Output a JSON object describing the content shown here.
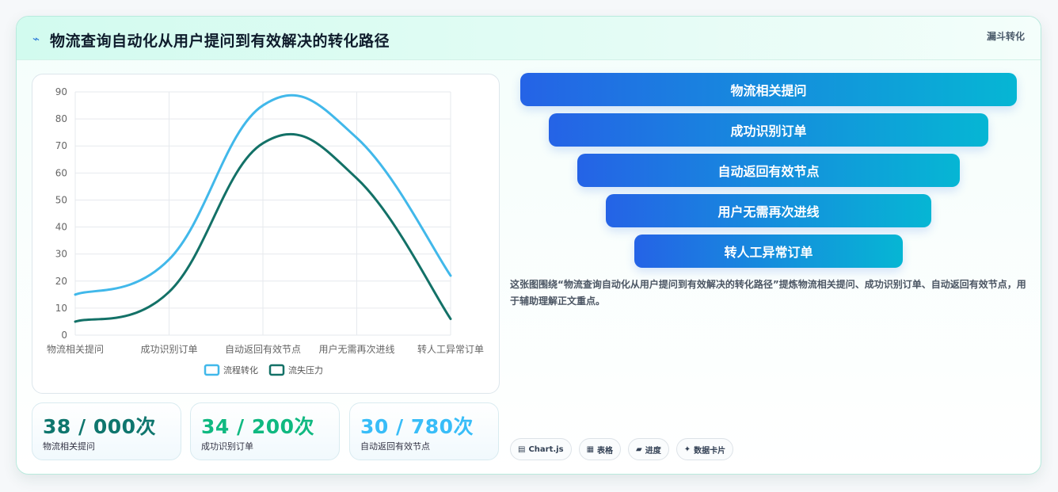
{
  "header": {
    "icon": "lightning-icon",
    "title": "物流查询自动化从用户提问到有效解决的转化路径",
    "tag": "漏斗转化"
  },
  "chart_data": {
    "type": "line",
    "categories": [
      "物流相关提问",
      "成功识别订单",
      "自动返回有效节点",
      "用户无需再次进线",
      "转人工异常订单"
    ],
    "series": [
      {
        "name": "流程转化",
        "values": [
          15,
          28,
          85,
          73,
          22
        ],
        "color": "#41b8ea"
      },
      {
        "name": "流失压力",
        "values": [
          5,
          16,
          71,
          58,
          6
        ],
        "color": "#137167"
      }
    ],
    "ylim": [
      0,
      90
    ],
    "yticks": [
      0,
      10,
      20,
      30,
      40,
      50,
      60,
      70,
      80,
      90
    ],
    "grid": true,
    "legend_position": "bottom"
  },
  "stats": [
    {
      "value": "38 / 000次",
      "label": "物流相关提问",
      "color": "#0f766e"
    },
    {
      "value": "34 / 200次",
      "label": "成功识别订单",
      "color": "#10b981"
    },
    {
      "value": "30 / 780次",
      "label": "自动返回有效节点",
      "color": "#38bdf8"
    }
  ],
  "funnel": [
    "物流相关提问",
    "成功识别订单",
    "自动返回有效节点",
    "用户无需再次进线",
    "转人工异常订单"
  ],
  "description": "这张图围绕“物流查询自动化从用户提问到有效解决的转化路径”提炼物流相关提问、成功识别订单、自动返回有效节点，用于辅助理解正文重点。",
  "chips": [
    {
      "icon": "chart-icon",
      "glyph": "▤",
      "label": "Chart.js"
    },
    {
      "icon": "table-icon",
      "glyph": "▦",
      "label": "表格"
    },
    {
      "icon": "progress-icon",
      "glyph": "▰",
      "label": "进度"
    },
    {
      "icon": "sparkle-icon",
      "glyph": "✦",
      "label": "数据卡片"
    }
  ]
}
